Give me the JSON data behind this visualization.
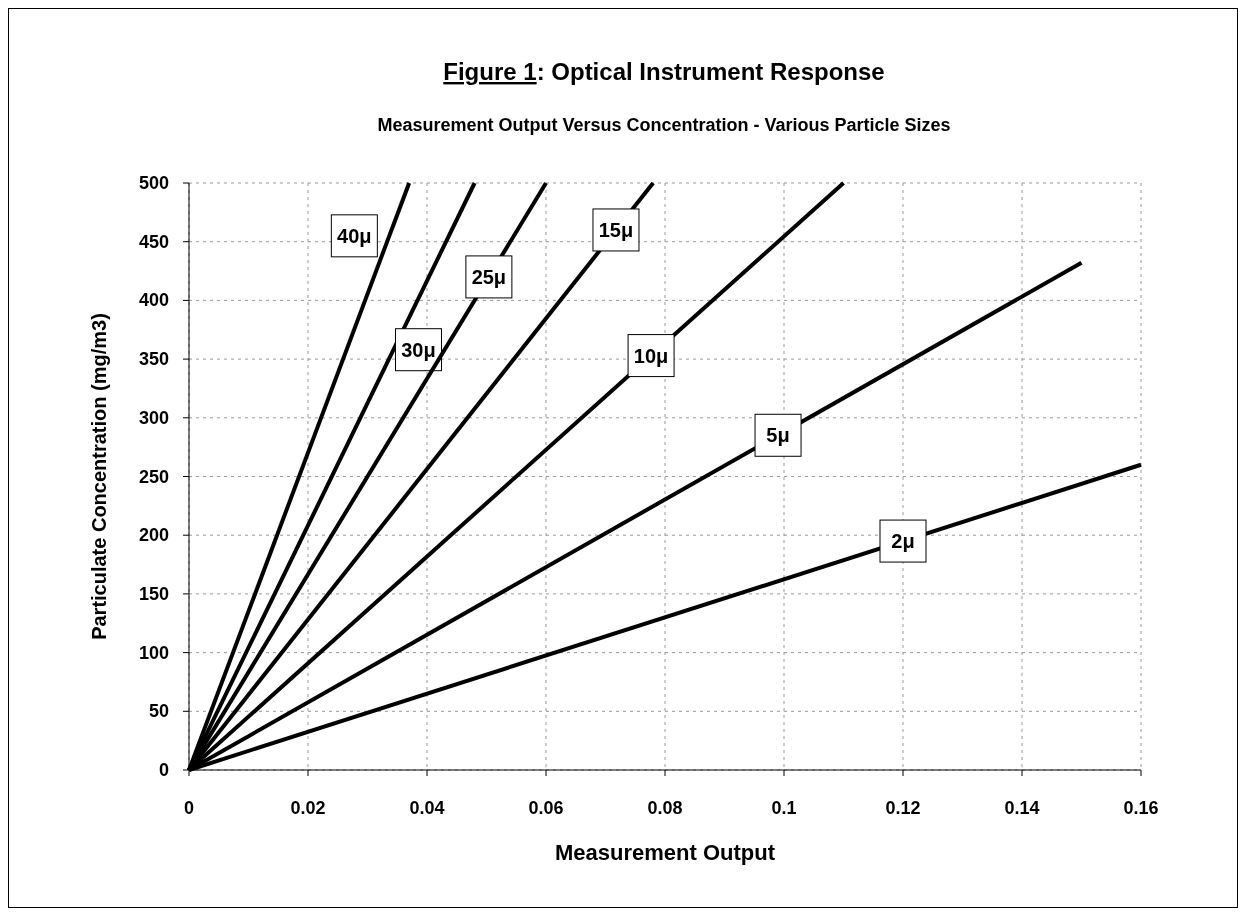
{
  "chart_data": {
    "type": "line",
    "title": "Figure 1: Optical Instrument Response",
    "subtitle": "Measurement Output Versus Concentration - Various Particle Sizes",
    "xlabel": "Measurement Output",
    "ylabel": "Particulate Concentration (mg/m3)",
    "xlim": [
      0,
      0.16
    ],
    "xticks": [
      0,
      0.02,
      0.04,
      0.06,
      0.08,
      0.1,
      0.12,
      0.14,
      0.16
    ],
    "ylim": [
      0,
      500
    ],
    "yticks": [
      0,
      50,
      100,
      150,
      200,
      250,
      300,
      350,
      400,
      450,
      500
    ],
    "grid": true,
    "marker": "none",
    "line_style": "solid",
    "series": [
      {
        "name": "40μ",
        "color": "#000000",
        "x": [
          0,
          0.037
        ],
        "values": [
          0,
          500
        ]
      },
      {
        "name": "30μ",
        "color": "#000000",
        "x": [
          0,
          0.048
        ],
        "values": [
          0,
          500
        ]
      },
      {
        "name": "25μ",
        "color": "#000000",
        "x": [
          0,
          0.06
        ],
        "values": [
          0,
          500
        ]
      },
      {
        "name": "15μ",
        "color": "#000000",
        "x": [
          0,
          0.078
        ],
        "values": [
          0,
          500
        ]
      },
      {
        "name": "10μ",
        "color": "#000000",
        "x": [
          0,
          0.11
        ],
        "values": [
          0,
          500
        ]
      },
      {
        "name": "5μ",
        "color": "#000000",
        "x": [
          0,
          0.15
        ],
        "values": [
          0,
          432
        ]
      },
      {
        "name": "2μ",
        "color": "#000000",
        "x": [
          0,
          0.16
        ],
        "values": [
          0,
          260
        ]
      }
    ]
  }
}
